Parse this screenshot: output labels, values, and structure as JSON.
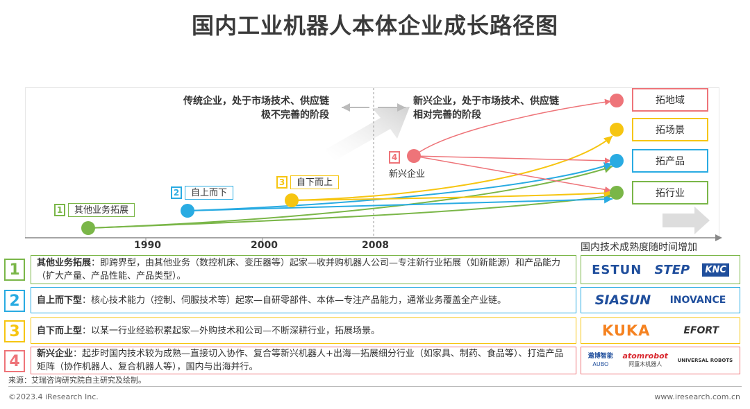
{
  "title": "国内工业机器人本体企业成长路径图",
  "phases": {
    "traditional": [
      "传统企业，处于市场技术、供应链",
      "极不完善的阶段"
    ],
    "emerging": [
      "新兴企业，处于市场技术、供应链",
      "相对完善的阶段"
    ]
  },
  "stages": [
    {
      "num": "1",
      "name": "其他业务拓展",
      "color": "#7ab648"
    },
    {
      "num": "2",
      "name": "自上而下",
      "color": "#29abe2"
    },
    {
      "num": "3",
      "name": "自下而上",
      "color": "#f6c511"
    },
    {
      "num": "4",
      "name": "新兴企业",
      "color": "#ee7479"
    }
  ],
  "targets": [
    {
      "label": "拓地域",
      "color": "#ee7479"
    },
    {
      "label": "拓场景",
      "color": "#f6c511"
    },
    {
      "label": "拓产品",
      "color": "#29abe2"
    },
    {
      "label": "拓行业",
      "color": "#7ab648"
    }
  ],
  "axis": {
    "years": [
      "1990",
      "2000",
      "2008"
    ],
    "title": "国内技术成熟度随时间增加"
  },
  "rows": [
    {
      "num": "1",
      "color": "#7ab648",
      "head": "其他业务拓展",
      "text": "：即跨界型，由其他业务（数控机床、变压器等）起家—收并购机器人公司—专注新行业拓展（如新能源）和产品能力（扩大产量、产品性能、产品类型）。",
      "logos": [
        "ESTUN",
        "STEP",
        "KNC"
      ]
    },
    {
      "num": "2",
      "color": "#29abe2",
      "head": "自上而下型",
      "text": "：核心技术能力（控制、伺服技术等）起家—自研零部件、本体—专注产品能力，通常业务覆盖全产业链。",
      "logos": [
        "SIASUN",
        "INOVANCE"
      ]
    },
    {
      "num": "3",
      "color": "#f6c511",
      "head": "自下而上型",
      "text": "：以某一行业经验积累起家—外购技术和公司—不断深耕行业，拓展场景。",
      "logos": [
        "KUKA",
        "EFORT"
      ]
    },
    {
      "num": "4",
      "color": "#ee7479",
      "head": "新兴企业",
      "text": "：起步时国内技术较为成熟—直接切入协作、复合等新兴机器人+出海—拓展细分行业（如家具、制药、食品等）、打造产品矩阵（协作机器人、复合机器人等），国内与出海并行。",
      "logos": [
        "遨博智能",
        "AUBO",
        "atomrobot",
        "阿童木机器人",
        "UNIVERSAL ROBOTS"
      ]
    }
  ],
  "footer": {
    "source": "来源：艾瑞咨询研究院自主研究及绘制。",
    "copyright": "©2023.4 iResearch Inc.",
    "website": "www.iresearch.com.cn"
  }
}
